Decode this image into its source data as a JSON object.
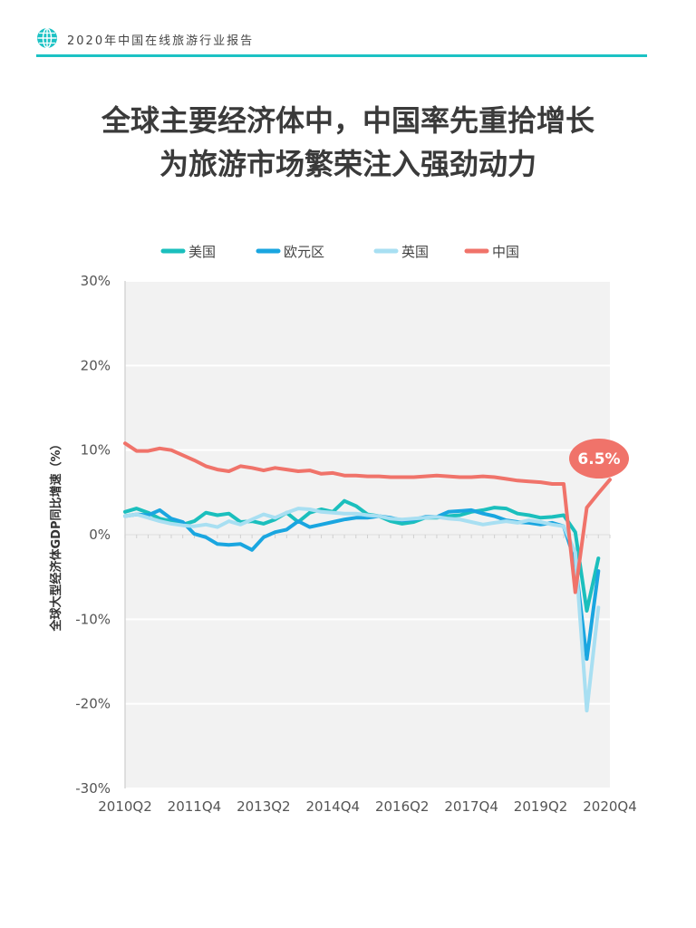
{
  "header": {
    "report_title": "2020年中国在线旅游行业报告",
    "accent_color": "#1cc2c4",
    "icon": "globe-icon"
  },
  "headline": {
    "line1": "全球主要经济体中，中国率先重拾增长",
    "line2": "为旅游市场繁荣注入强劲动力"
  },
  "chart_data": {
    "type": "line",
    "ylabel": "全球大型经济体GDP同比增速（%）",
    "ylim": [
      -30,
      30
    ],
    "y_ticks": [
      "30%",
      "20%",
      "10%",
      "0%",
      "-10%",
      "-20%",
      "-30%"
    ],
    "x_ticks": [
      "2010Q2",
      "2011Q4",
      "2013Q2",
      "2014Q4",
      "2016Q2",
      "2017Q4",
      "2019Q2",
      "2020Q4"
    ],
    "categories": [
      "2010Q2",
      "2010Q3",
      "2010Q4",
      "2011Q1",
      "2011Q2",
      "2011Q3",
      "2011Q4",
      "2012Q1",
      "2012Q2",
      "2012Q3",
      "2012Q4",
      "2013Q1",
      "2013Q2",
      "2013Q3",
      "2013Q4",
      "2014Q1",
      "2014Q2",
      "2014Q3",
      "2014Q4",
      "2015Q1",
      "2015Q2",
      "2015Q3",
      "2015Q4",
      "2016Q1",
      "2016Q2",
      "2016Q3",
      "2016Q4",
      "2017Q1",
      "2017Q2",
      "2017Q3",
      "2017Q4",
      "2018Q1",
      "2018Q2",
      "2018Q3",
      "2018Q4",
      "2019Q1",
      "2019Q2",
      "2019Q3",
      "2019Q4",
      "2020Q1",
      "2020Q2",
      "2020Q3",
      "2020Q4"
    ],
    "grid": true,
    "legend_position": "top",
    "series": [
      {
        "name": "美国",
        "color": "#1bbfbd",
        "values": [
          2.7,
          3.1,
          2.6,
          1.9,
          1.6,
          1.2,
          1.6,
          2.6,
          2.3,
          2.5,
          1.5,
          1.6,
          1.3,
          1.8,
          2.6,
          1.5,
          2.6,
          3.0,
          2.7,
          4.0,
          3.4,
          2.4,
          2.2,
          1.6,
          1.3,
          1.5,
          2.0,
          2.0,
          2.2,
          2.3,
          2.7,
          2.9,
          3.2,
          3.1,
          2.5,
          2.3,
          2.0,
          2.1,
          2.3,
          0.3,
          -9.0,
          -2.8,
          null
        ]
      },
      {
        "name": "欧元区",
        "color": "#1aa6e0",
        "values": [
          2.2,
          2.4,
          2.3,
          2.9,
          1.9,
          1.5,
          0.1,
          -0.3,
          -1.1,
          -1.2,
          -1.1,
          -1.8,
          -0.3,
          0.3,
          0.6,
          1.6,
          0.9,
          1.2,
          1.5,
          1.8,
          2.0,
          2.0,
          2.2,
          2.0,
          1.7,
          1.8,
          2.1,
          2.1,
          2.7,
          2.8,
          2.9,
          2.5,
          2.2,
          1.7,
          1.5,
          1.4,
          1.2,
          1.4,
          1.0,
          -3.2,
          -14.7,
          -4.3,
          null
        ]
      },
      {
        "name": "英国",
        "color": "#a8dff2",
        "values": [
          2.2,
          2.4,
          2.0,
          1.6,
          1.3,
          1.1,
          1.0,
          1.2,
          0.9,
          1.6,
          1.2,
          1.8,
          2.4,
          2.0,
          2.6,
          3.1,
          3.0,
          2.7,
          2.6,
          2.5,
          2.5,
          2.3,
          2.2,
          1.9,
          1.8,
          1.9,
          2.0,
          2.1,
          1.9,
          1.8,
          1.5,
          1.2,
          1.4,
          1.6,
          1.4,
          1.7,
          1.5,
          1.2,
          1.0,
          -2.1,
          -20.8,
          -8.6,
          null
        ]
      },
      {
        "name": "中国",
        "color": "#f0736a",
        "values": [
          10.8,
          9.9,
          9.9,
          10.2,
          10.0,
          9.4,
          8.8,
          8.1,
          7.7,
          7.5,
          8.1,
          7.9,
          7.6,
          7.9,
          7.7,
          7.5,
          7.6,
          7.2,
          7.3,
          7.0,
          7.0,
          6.9,
          6.9,
          6.8,
          6.8,
          6.8,
          6.9,
          7.0,
          6.9,
          6.8,
          6.8,
          6.9,
          6.8,
          6.6,
          6.4,
          6.3,
          6.2,
          6.0,
          6.0,
          -6.8,
          3.2,
          4.9,
          6.5
        ]
      }
    ],
    "annotation": {
      "label": "6.5%",
      "target": "中国 2020Q4",
      "color": "#f0736a"
    }
  }
}
